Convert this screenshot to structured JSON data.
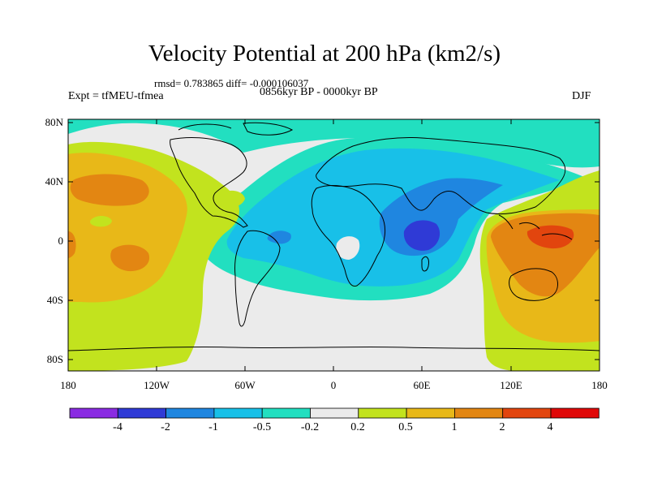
{
  "title": "Velocity Potential at 200 hPa (km2/s)",
  "stats": "rmsd= 0.783865 diff= -0.000106037",
  "experiment": "Expt = tfMEU-tfmea",
  "period": "0856kyr BP - 0000kyr BP",
  "season": "DJF",
  "lat_labels": [
    "80N",
    "40N",
    "0",
    "40S",
    "80S"
  ],
  "lon_labels": [
    "180",
    "120W",
    "60W",
    "0",
    "60E",
    "120E",
    "180"
  ],
  "colorbar": {
    "labels": [
      "-4",
      "-2",
      "-1",
      "-0.5",
      "-0.2",
      "0.2",
      "0.5",
      "1",
      "2",
      "4"
    ],
    "colors": [
      "#8a2be2",
      "#2f3ad6",
      "#1f86e0",
      "#18c0e8",
      "#22dfc0",
      "#ebebeb",
      "#c2e31e",
      "#e8b818",
      "#e38612",
      "#e2450e",
      "#e00808"
    ]
  }
}
